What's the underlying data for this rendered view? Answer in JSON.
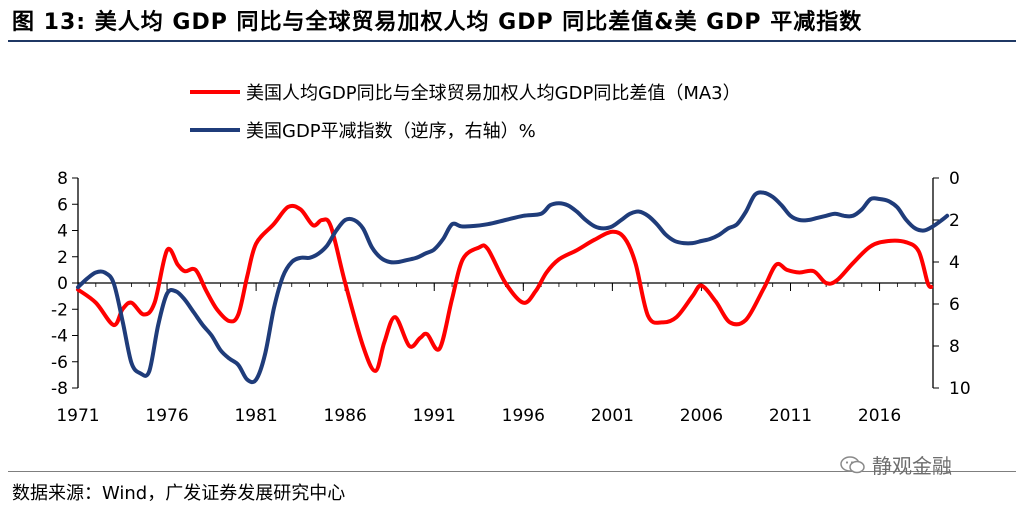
{
  "figure": {
    "title": "图 13:  美人均 GDP 同比与全球贸易加权人均 GDP 同比差值&美 GDP 平减指数",
    "source": "数据来源：Wind，广发证券发展研究中心",
    "watermark": "静观金融"
  },
  "colors": {
    "red_series": "#ff0000",
    "blue_series": "#1f3c7a",
    "axis": "#000000",
    "rule": "#1f3864"
  },
  "chart_data": {
    "type": "line",
    "title": "",
    "x_range": [
      1971,
      2019
    ],
    "x_ticks": [
      1971,
      1976,
      1981,
      1986,
      1991,
      1996,
      2001,
      2006,
      2011,
      2016
    ],
    "y_left": {
      "ylim": [
        -8,
        8
      ],
      "ticks": [
        8,
        6,
        4,
        2,
        0,
        -2,
        -4,
        -6,
        -8
      ]
    },
    "y_right": {
      "ylim": [
        0,
        10
      ],
      "inverted": true,
      "ticks": [
        0,
        2,
        4,
        6,
        8,
        10
      ]
    },
    "legend_position": "top-center",
    "series": [
      {
        "name": "美国人均GDP同比与全球贸易加权人均GDP同比差值（MA3）",
        "axis": "left",
        "color": "#ff0000",
        "points": [
          [
            1971,
            -0.5
          ],
          [
            1972,
            -1.5
          ],
          [
            1973,
            -3.2
          ],
          [
            1973.5,
            -2.0
          ],
          [
            1974,
            -1.5
          ],
          [
            1974.7,
            -2.4
          ],
          [
            1975.3,
            -1.5
          ],
          [
            1976,
            2.5
          ],
          [
            1976.6,
            1.4
          ],
          [
            1977,
            0.9
          ],
          [
            1977.6,
            1.0
          ],
          [
            1978.2,
            -0.6
          ],
          [
            1978.8,
            -2.0
          ],
          [
            1979.5,
            -2.9
          ],
          [
            1980,
            -2.4
          ],
          [
            1980.5,
            0.5
          ],
          [
            1981,
            3.0
          ],
          [
            1982,
            4.5
          ],
          [
            1982.8,
            5.8
          ],
          [
            1983.5,
            5.6
          ],
          [
            1984.2,
            4.4
          ],
          [
            1984.7,
            4.8
          ],
          [
            1985.2,
            4.3
          ],
          [
            1986,
            0.0
          ],
          [
            1987,
            -4.8
          ],
          [
            1987.7,
            -6.7
          ],
          [
            1988.2,
            -4.5
          ],
          [
            1988.8,
            -2.6
          ],
          [
            1989.6,
            -4.8
          ],
          [
            1990.2,
            -4.2
          ],
          [
            1990.6,
            -3.9
          ],
          [
            1991.3,
            -5.0
          ],
          [
            1992,
            -1.2
          ],
          [
            1992.6,
            1.8
          ],
          [
            1993.5,
            2.7
          ],
          [
            1994,
            2.6
          ],
          [
            1995,
            0.0
          ],
          [
            1996,
            -1.5
          ],
          [
            1996.7,
            -0.6
          ],
          [
            1997.3,
            0.8
          ],
          [
            1998,
            1.8
          ],
          [
            1999,
            2.5
          ],
          [
            2000,
            3.3
          ],
          [
            2001,
            3.9
          ],
          [
            2001.7,
            3.4
          ],
          [
            2002.3,
            1.5
          ],
          [
            2003,
            -2.5
          ],
          [
            2003.8,
            -3.0
          ],
          [
            2004.6,
            -2.6
          ],
          [
            2005.5,
            -1.0
          ],
          [
            2006,
            -0.2
          ],
          [
            2006.8,
            -1.4
          ],
          [
            2007.6,
            -3.0
          ],
          [
            2008.5,
            -2.8
          ],
          [
            2009.5,
            -0.4
          ],
          [
            2010.2,
            1.4
          ],
          [
            2010.8,
            1.0
          ],
          [
            2011.5,
            0.8
          ],
          [
            2012.3,
            0.9
          ],
          [
            2013,
            0.0
          ],
          [
            2013.6,
            0.2
          ],
          [
            2014.5,
            1.5
          ],
          [
            2015.5,
            2.8
          ],
          [
            2016.5,
            3.2
          ],
          [
            2017.5,
            3.1
          ],
          [
            2018.2,
            2.4
          ],
          [
            2018.7,
            0.0
          ],
          [
            2018.9,
            -0.3
          ]
        ]
      },
      {
        "name": "美国GDP平减指数（逆序，右轴）%",
        "axis": "right",
        "color": "#1f3c7a",
        "points": [
          [
            1971,
            5.2
          ],
          [
            1971.5,
            4.8
          ],
          [
            1972,
            4.5
          ],
          [
            1972.5,
            4.5
          ],
          [
            1973,
            5.0
          ],
          [
            1973.5,
            6.8
          ],
          [
            1974,
            8.8
          ],
          [
            1974.5,
            9.3
          ],
          [
            1975,
            9.2
          ],
          [
            1975.5,
            7.0
          ],
          [
            1976,
            5.5
          ],
          [
            1976.5,
            5.4
          ],
          [
            1977,
            5.8
          ],
          [
            1977.5,
            6.4
          ],
          [
            1978,
            7.0
          ],
          [
            1978.5,
            7.5
          ],
          [
            1979,
            8.2
          ],
          [
            1979.5,
            8.6
          ],
          [
            1980,
            8.9
          ],
          [
            1980.5,
            9.6
          ],
          [
            1981,
            9.6
          ],
          [
            1981.5,
            8.4
          ],
          [
            1982,
            6.2
          ],
          [
            1982.5,
            4.7
          ],
          [
            1983,
            4.0
          ],
          [
            1983.5,
            3.8
          ],
          [
            1984,
            3.8
          ],
          [
            1984.5,
            3.6
          ],
          [
            1985,
            3.2
          ],
          [
            1985.5,
            2.5
          ],
          [
            1986,
            2.0
          ],
          [
            1986.5,
            2.0
          ],
          [
            1987,
            2.4
          ],
          [
            1987.5,
            3.3
          ],
          [
            1988,
            3.8
          ],
          [
            1988.5,
            4.0
          ],
          [
            1989,
            4.0
          ],
          [
            1989.5,
            3.9
          ],
          [
            1990,
            3.8
          ],
          [
            1990.5,
            3.6
          ],
          [
            1991,
            3.4
          ],
          [
            1991.5,
            2.9
          ],
          [
            1992,
            2.2
          ],
          [
            1992.5,
            2.3
          ],
          [
            1993,
            2.3
          ],
          [
            1994,
            2.2
          ],
          [
            1995,
            2.0
          ],
          [
            1996,
            1.8
          ],
          [
            1997,
            1.7
          ],
          [
            1997.5,
            1.3
          ],
          [
            1998,
            1.2
          ],
          [
            1998.5,
            1.3
          ],
          [
            1999,
            1.6
          ],
          [
            1999.5,
            2.0
          ],
          [
            2000,
            2.3
          ],
          [
            2000.5,
            2.4
          ],
          [
            2001,
            2.3
          ],
          [
            2001.5,
            2.0
          ],
          [
            2002,
            1.7
          ],
          [
            2002.5,
            1.6
          ],
          [
            2003,
            1.8
          ],
          [
            2003.5,
            2.2
          ],
          [
            2004,
            2.7
          ],
          [
            2004.5,
            3.0
          ],
          [
            2005,
            3.1
          ],
          [
            2005.5,
            3.1
          ],
          [
            2006,
            3.0
          ],
          [
            2006.5,
            2.9
          ],
          [
            2007,
            2.7
          ],
          [
            2007.5,
            2.4
          ],
          [
            2008,
            2.2
          ],
          [
            2008.5,
            1.6
          ],
          [
            2009,
            0.8
          ],
          [
            2009.5,
            0.7
          ],
          [
            2010,
            0.9
          ],
          [
            2010.5,
            1.3
          ],
          [
            2011,
            1.8
          ],
          [
            2011.5,
            2.0
          ],
          [
            2012,
            2.0
          ],
          [
            2012.5,
            1.9
          ],
          [
            2013,
            1.8
          ],
          [
            2013.5,
            1.7
          ],
          [
            2014,
            1.8
          ],
          [
            2014.5,
            1.8
          ],
          [
            2015,
            1.5
          ],
          [
            2015.5,
            1.0
          ],
          [
            2016,
            1.0
          ],
          [
            2016.5,
            1.1
          ],
          [
            2017,
            1.4
          ],
          [
            2017.5,
            2.0
          ],
          [
            2018,
            2.4
          ],
          [
            2018.5,
            2.5
          ],
          [
            2019,
            2.3
          ],
          [
            2019.5,
            2.0
          ],
          [
            2019.8,
            1.8
          ]
        ]
      }
    ]
  }
}
